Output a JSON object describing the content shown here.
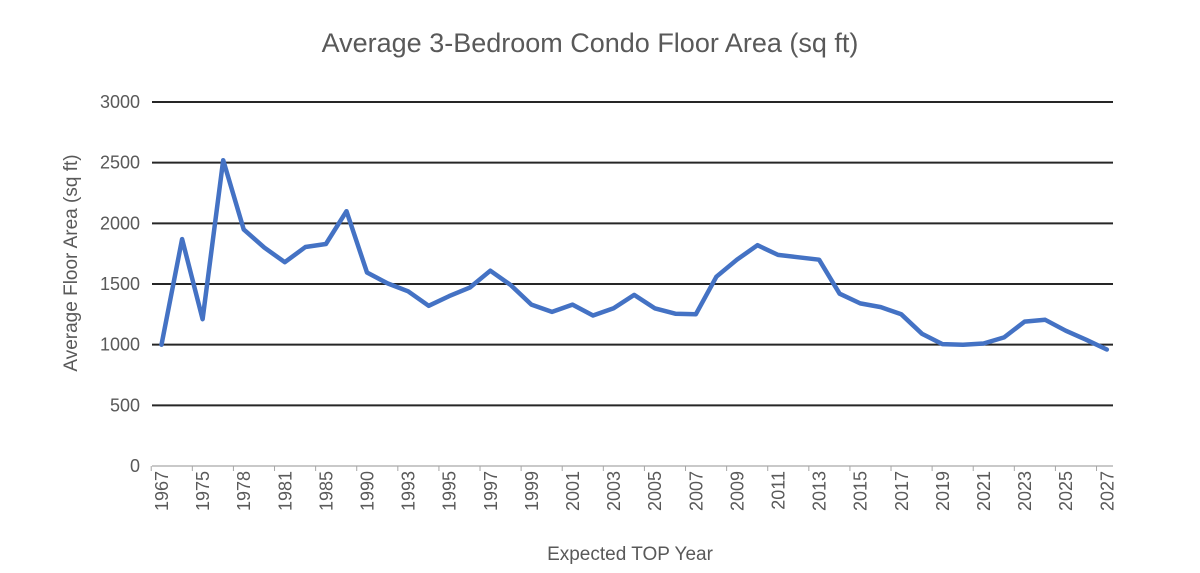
{
  "chart_data": {
    "type": "line",
    "title": "Average 3-Bedroom Condo Floor Area (sq ft)",
    "xlabel": "Expected TOP Year",
    "ylabel": "Average Floor Area (sq ft)",
    "ylim": [
      0,
      3000
    ],
    "y_ticks": [
      0,
      500,
      1000,
      1500,
      2000,
      2500,
      3000
    ],
    "x_tick_labels": [
      "1967",
      "1975",
      "1978",
      "1981",
      "1985",
      "1990",
      "1993",
      "1995",
      "1997",
      "1999",
      "2001",
      "2003",
      "2005",
      "2007",
      "2009",
      "2011",
      "2013",
      "2015",
      "2017",
      "2019",
      "2021",
      "2023",
      "2025",
      "2027"
    ],
    "x_tick_label_interval": 2,
    "grid": "horizontal",
    "legend": "none",
    "series": [
      {
        "name": "Average Floor Area (sq ft)",
        "color": "#4472C4",
        "points": [
          {
            "year": 1967,
            "value": 1000
          },
          {
            "year": 1970,
            "value": 1870
          },
          {
            "year": 1975,
            "value": 1210
          },
          {
            "year": 1976,
            "value": 2520
          },
          {
            "year": 1978,
            "value": 1950
          },
          {
            "year": 1980,
            "value": 1800
          },
          {
            "year": 1981,
            "value": 1680
          },
          {
            "year": 1983,
            "value": 1805
          },
          {
            "year": 1985,
            "value": 1830
          },
          {
            "year": 1987,
            "value": 2100
          },
          {
            "year": 1990,
            "value": 1595
          },
          {
            "year": 1992,
            "value": 1505
          },
          {
            "year": 1993,
            "value": 1440
          },
          {
            "year": 1994,
            "value": 1320
          },
          {
            "year": 1995,
            "value": 1400
          },
          {
            "year": 1996,
            "value": 1470
          },
          {
            "year": 1997,
            "value": 1610
          },
          {
            "year": 1998,
            "value": 1490
          },
          {
            "year": 1999,
            "value": 1330
          },
          {
            "year": 2000,
            "value": 1270
          },
          {
            "year": 2001,
            "value": 1330
          },
          {
            "year": 2002,
            "value": 1240
          },
          {
            "year": 2003,
            "value": 1300
          },
          {
            "year": 2004,
            "value": 1410
          },
          {
            "year": 2005,
            "value": 1300
          },
          {
            "year": 2006,
            "value": 1255
          },
          {
            "year": 2007,
            "value": 1250
          },
          {
            "year": 2008,
            "value": 1560
          },
          {
            "year": 2009,
            "value": 1700
          },
          {
            "year": 2010,
            "value": 1820
          },
          {
            "year": 2011,
            "value": 1740
          },
          {
            "year": 2012,
            "value": 1720
          },
          {
            "year": 2013,
            "value": 1700
          },
          {
            "year": 2014,
            "value": 1420
          },
          {
            "year": 2015,
            "value": 1340
          },
          {
            "year": 2016,
            "value": 1310
          },
          {
            "year": 2017,
            "value": 1250
          },
          {
            "year": 2018,
            "value": 1090
          },
          {
            "year": 2019,
            "value": 1005
          },
          {
            "year": 2020,
            "value": 1000
          },
          {
            "year": 2021,
            "value": 1010
          },
          {
            "year": 2022,
            "value": 1060
          },
          {
            "year": 2023,
            "value": 1190
          },
          {
            "year": 2024,
            "value": 1205
          },
          {
            "year": 2025,
            "value": 1115
          },
          {
            "year": 2026,
            "value": 1040
          },
          {
            "year": 2027,
            "value": 960
          }
        ]
      }
    ],
    "style": {
      "line_color": "#4472C4",
      "gridline_color": "#262626",
      "axis_line_color": "#c9c9c9",
      "tick_color": "#a6a6a6",
      "text_color": "#595959",
      "background": "#ffffff"
    }
  }
}
